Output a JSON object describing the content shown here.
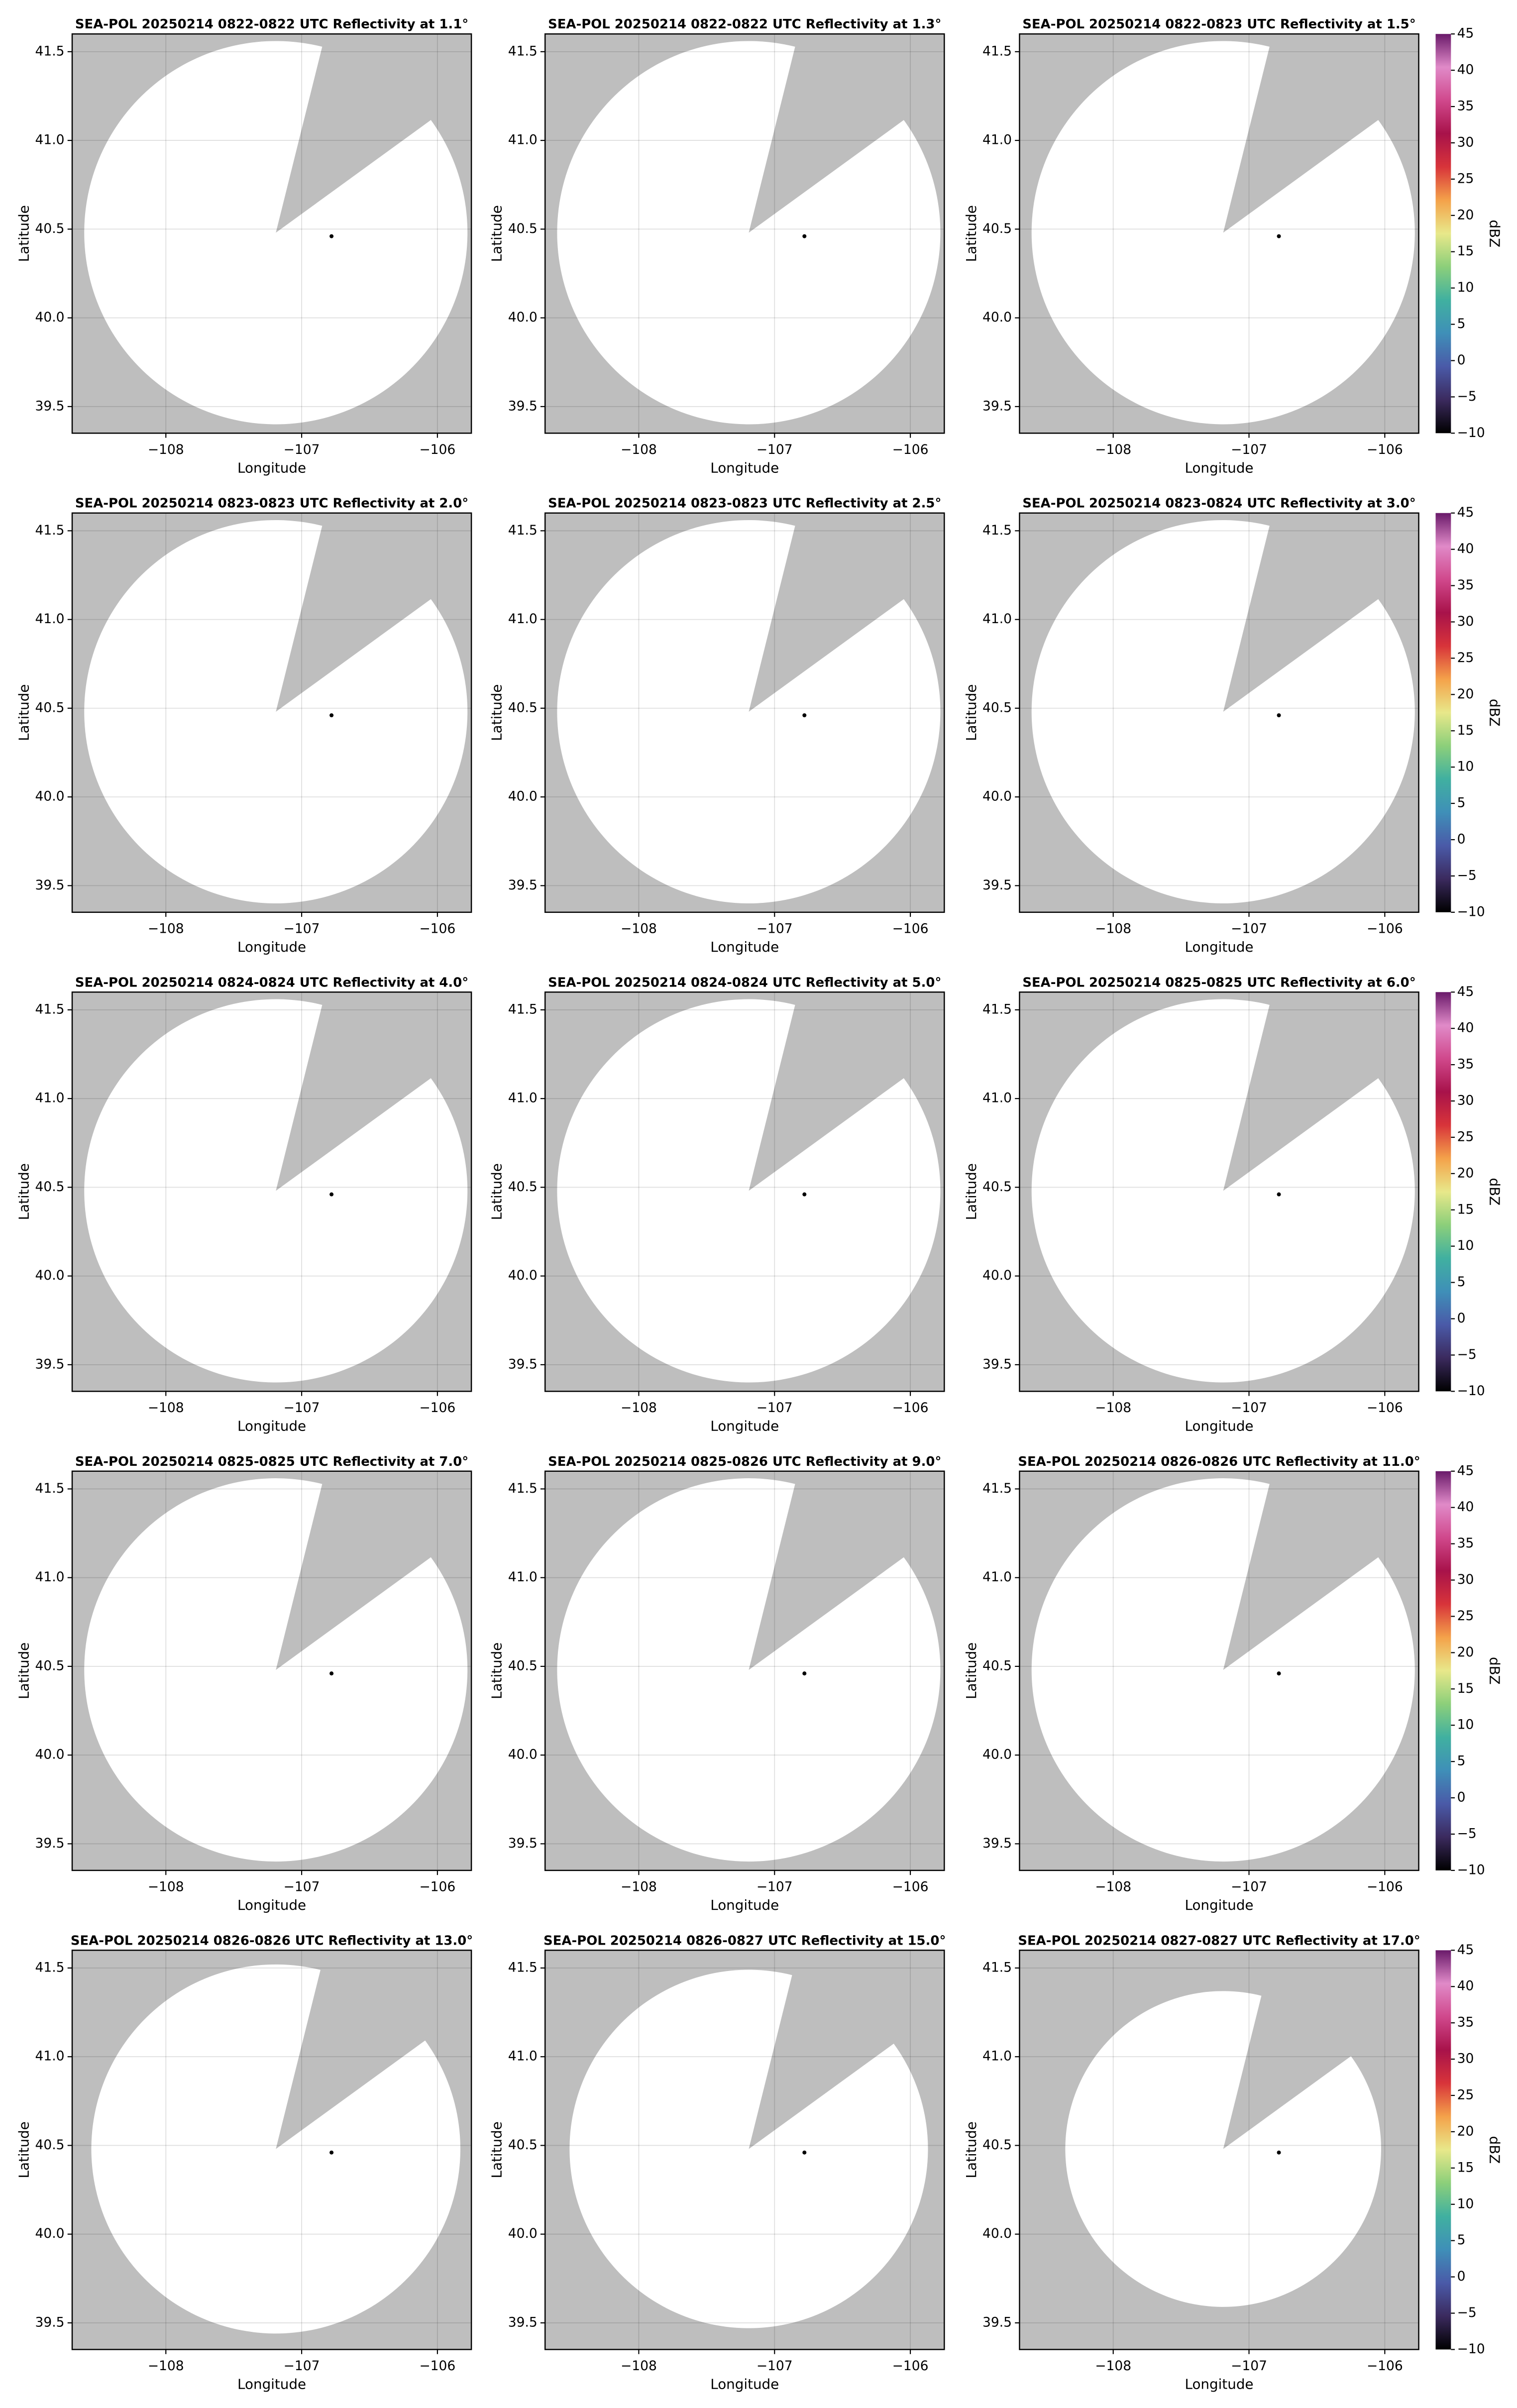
{
  "chart_data": [
    {
      "type": "radar-ppi",
      "title": "SEA-POL 20250214 0822-0822 UTC Reflectivity at 1.1°",
      "xlabel": "Longitude",
      "ylabel": "Latitude",
      "xlim": [
        -108.69,
        -105.75
      ],
      "ylim": [
        39.35,
        41.6
      ],
      "xticks": [
        {
          "value": -108,
          "label": "−108"
        },
        {
          "value": -107,
          "label": "−107"
        },
        {
          "value": -106,
          "label": "−106"
        }
      ],
      "yticks": [
        39.5,
        {
          "value": 40.0,
          "label": "40.0"
        },
        40.5,
        {
          "value": 41.0,
          "label": "41.0"
        },
        41.5
      ],
      "grid": true,
      "radar_lon": -107.19,
      "radar_lat": 40.48,
      "coverage_radius_lat": 1.08,
      "blind_sector": [
        14,
        54
      ],
      "marker": {
        "x": -106.78,
        "y": 40.46
      }
    },
    {
      "type": "radar-ppi",
      "title": "SEA-POL 20250214 0822-0822 UTC Reflectivity at 1.3°",
      "xlabel": "Longitude",
      "ylabel": "Latitude",
      "xlim": [
        -108.69,
        -105.75
      ],
      "ylim": [
        39.35,
        41.6
      ],
      "xticks": [
        {
          "value": -108,
          "label": "−108"
        },
        {
          "value": -107,
          "label": "−107"
        },
        {
          "value": -106,
          "label": "−106"
        }
      ],
      "yticks": [
        39.5,
        {
          "value": 40.0,
          "label": "40.0"
        },
        40.5,
        {
          "value": 41.0,
          "label": "41.0"
        },
        41.5
      ],
      "grid": true,
      "radar_lon": -107.19,
      "radar_lat": 40.48,
      "coverage_radius_lat": 1.08,
      "blind_sector": [
        14,
        54
      ],
      "marker": {
        "x": -106.78,
        "y": 40.46
      }
    },
    {
      "type": "radar-ppi",
      "title": "SEA-POL 20250214 0822-0823 UTC Reflectivity at 1.5°",
      "xlabel": "Longitude",
      "ylabel": "Latitude",
      "xlim": [
        -108.69,
        -105.75
      ],
      "ylim": [
        39.35,
        41.6
      ],
      "xticks": [
        {
          "value": -108,
          "label": "−108"
        },
        {
          "value": -107,
          "label": "−107"
        },
        {
          "value": -106,
          "label": "−106"
        }
      ],
      "yticks": [
        39.5,
        {
          "value": 40.0,
          "label": "40.0"
        },
        40.5,
        {
          "value": 41.0,
          "label": "41.0"
        },
        41.5
      ],
      "grid": true,
      "radar_lon": -107.19,
      "radar_lat": 40.48,
      "coverage_radius_lat": 1.08,
      "blind_sector": [
        14,
        54
      ],
      "marker": {
        "x": -106.78,
        "y": 40.46
      },
      "colorbar_label": "dBZ",
      "clim": [
        -10,
        45
      ],
      "cticks": [
        {
          "value": -10,
          "label": "−10"
        },
        {
          "value": -5,
          "label": "−5"
        },
        0,
        5,
        10,
        15,
        20,
        25,
        30,
        35,
        40,
        45
      ],
      "colormap": [
        "#000000",
        "#3b2a5e",
        "#4a5aa8",
        "#3f8fb8",
        "#40b0a0",
        "#8ccf7a",
        "#e8e88a",
        "#f4a24a",
        "#d8343a",
        "#a8124a",
        "#d0488c",
        "#e08ac8",
        "#6a1a6a"
      ]
    },
    {
      "type": "radar-ppi",
      "title": "SEA-POL 20250214 0823-0823 UTC Reflectivity at 2.0°",
      "xlabel": "Longitude",
      "ylabel": "Latitude",
      "xlim": [
        -108.69,
        -105.75
      ],
      "ylim": [
        39.35,
        41.6
      ],
      "xticks": [
        {
          "value": -108,
          "label": "−108"
        },
        {
          "value": -107,
          "label": "−107"
        },
        {
          "value": -106,
          "label": "−106"
        }
      ],
      "yticks": [
        39.5,
        {
          "value": 40.0,
          "label": "40.0"
        },
        40.5,
        {
          "value": 41.0,
          "label": "41.0"
        },
        41.5
      ],
      "grid": true,
      "radar_lon": -107.19,
      "radar_lat": 40.48,
      "coverage_radius_lat": 1.08,
      "blind_sector": [
        14,
        54
      ],
      "marker": {
        "x": -106.78,
        "y": 40.46
      }
    },
    {
      "type": "radar-ppi",
      "title": "SEA-POL 20250214 0823-0823 UTC Reflectivity at 2.5°",
      "xlabel": "Longitude",
      "ylabel": "Latitude",
      "xlim": [
        -108.69,
        -105.75
      ],
      "ylim": [
        39.35,
        41.6
      ],
      "xticks": [
        {
          "value": -108,
          "label": "−108"
        },
        {
          "value": -107,
          "label": "−107"
        },
        {
          "value": -106,
          "label": "−106"
        }
      ],
      "yticks": [
        39.5,
        {
          "value": 40.0,
          "label": "40.0"
        },
        40.5,
        {
          "value": 41.0,
          "label": "41.0"
        },
        41.5
      ],
      "grid": true,
      "radar_lon": -107.19,
      "radar_lat": 40.48,
      "coverage_radius_lat": 1.08,
      "blind_sector": [
        14,
        54
      ],
      "marker": {
        "x": -106.78,
        "y": 40.46
      }
    },
    {
      "type": "radar-ppi",
      "title": "SEA-POL 20250214 0823-0824 UTC Reflectivity at 3.0°",
      "xlabel": "Longitude",
      "ylabel": "Latitude",
      "xlim": [
        -108.69,
        -105.75
      ],
      "ylim": [
        39.35,
        41.6
      ],
      "xticks": [
        {
          "value": -108,
          "label": "−108"
        },
        {
          "value": -107,
          "label": "−107"
        },
        {
          "value": -106,
          "label": "−106"
        }
      ],
      "yticks": [
        39.5,
        {
          "value": 40.0,
          "label": "40.0"
        },
        40.5,
        {
          "value": 41.0,
          "label": "41.0"
        },
        41.5
      ],
      "grid": true,
      "radar_lon": -107.19,
      "radar_lat": 40.48,
      "coverage_radius_lat": 1.08,
      "blind_sector": [
        14,
        54
      ],
      "marker": {
        "x": -106.78,
        "y": 40.46
      },
      "colorbar_label": "dBZ",
      "clim": [
        -10,
        45
      ],
      "cticks": [
        {
          "value": -10,
          "label": "−10"
        },
        {
          "value": -5,
          "label": "−5"
        },
        0,
        5,
        10,
        15,
        20,
        25,
        30,
        35,
        40,
        45
      ],
      "colormap": [
        "#000000",
        "#3b2a5e",
        "#4a5aa8",
        "#3f8fb8",
        "#40b0a0",
        "#8ccf7a",
        "#e8e88a",
        "#f4a24a",
        "#d8343a",
        "#a8124a",
        "#d0488c",
        "#e08ac8",
        "#6a1a6a"
      ]
    },
    {
      "type": "radar-ppi",
      "title": "SEA-POL 20250214 0824-0824 UTC Reflectivity at 4.0°",
      "xlabel": "Longitude",
      "ylabel": "Latitude",
      "xlim": [
        -108.69,
        -105.75
      ],
      "ylim": [
        39.35,
        41.6
      ],
      "xticks": [
        {
          "value": -108,
          "label": "−108"
        },
        {
          "value": -107,
          "label": "−107"
        },
        {
          "value": -106,
          "label": "−106"
        }
      ],
      "yticks": [
        39.5,
        {
          "value": 40.0,
          "label": "40.0"
        },
        40.5,
        {
          "value": 41.0,
          "label": "41.0"
        },
        41.5
      ],
      "grid": true,
      "radar_lon": -107.19,
      "radar_lat": 40.48,
      "coverage_radius_lat": 1.08,
      "blind_sector": [
        14,
        54
      ],
      "marker": {
        "x": -106.78,
        "y": 40.46
      }
    },
    {
      "type": "radar-ppi",
      "title": "SEA-POL 20250214 0824-0824 UTC Reflectivity at 5.0°",
      "xlabel": "Longitude",
      "ylabel": "Latitude",
      "xlim": [
        -108.69,
        -105.75
      ],
      "ylim": [
        39.35,
        41.6
      ],
      "xticks": [
        {
          "value": -108,
          "label": "−108"
        },
        {
          "value": -107,
          "label": "−107"
        },
        {
          "value": -106,
          "label": "−106"
        }
      ],
      "yticks": [
        39.5,
        {
          "value": 40.0,
          "label": "40.0"
        },
        40.5,
        {
          "value": 41.0,
          "label": "41.0"
        },
        41.5
      ],
      "grid": true,
      "radar_lon": -107.19,
      "radar_lat": 40.48,
      "coverage_radius_lat": 1.08,
      "blind_sector": [
        14,
        54
      ],
      "marker": {
        "x": -106.78,
        "y": 40.46
      }
    },
    {
      "type": "radar-ppi",
      "title": "SEA-POL 20250214 0825-0825 UTC Reflectivity at 6.0°",
      "xlabel": "Longitude",
      "ylabel": "Latitude",
      "xlim": [
        -108.69,
        -105.75
      ],
      "ylim": [
        39.35,
        41.6
      ],
      "xticks": [
        {
          "value": -108,
          "label": "−108"
        },
        {
          "value": -107,
          "label": "−107"
        },
        {
          "value": -106,
          "label": "−106"
        }
      ],
      "yticks": [
        39.5,
        {
          "value": 40.0,
          "label": "40.0"
        },
        40.5,
        {
          "value": 41.0,
          "label": "41.0"
        },
        41.5
      ],
      "grid": true,
      "radar_lon": -107.19,
      "radar_lat": 40.48,
      "coverage_radius_lat": 1.08,
      "blind_sector": [
        14,
        54
      ],
      "marker": {
        "x": -106.78,
        "y": 40.46
      },
      "colorbar_label": "dBZ",
      "clim": [
        -10,
        45
      ],
      "cticks": [
        {
          "value": -10,
          "label": "−10"
        },
        {
          "value": -5,
          "label": "−5"
        },
        0,
        5,
        10,
        15,
        20,
        25,
        30,
        35,
        40,
        45
      ],
      "colormap": [
        "#000000",
        "#3b2a5e",
        "#4a5aa8",
        "#3f8fb8",
        "#40b0a0",
        "#8ccf7a",
        "#e8e88a",
        "#f4a24a",
        "#d8343a",
        "#a8124a",
        "#d0488c",
        "#e08ac8",
        "#6a1a6a"
      ]
    },
    {
      "type": "radar-ppi",
      "title": "SEA-POL 20250214 0825-0825 UTC Reflectivity at 7.0°",
      "xlabel": "Longitude",
      "ylabel": "Latitude",
      "xlim": [
        -108.69,
        -105.75
      ],
      "ylim": [
        39.35,
        41.6
      ],
      "xticks": [
        {
          "value": -108,
          "label": "−108"
        },
        {
          "value": -107,
          "label": "−107"
        },
        {
          "value": -106,
          "label": "−106"
        }
      ],
      "yticks": [
        39.5,
        {
          "value": 40.0,
          "label": "40.0"
        },
        40.5,
        {
          "value": 41.0,
          "label": "41.0"
        },
        41.5
      ],
      "grid": true,
      "radar_lon": -107.19,
      "radar_lat": 40.48,
      "coverage_radius_lat": 1.08,
      "blind_sector": [
        14,
        54
      ],
      "marker": {
        "x": -106.78,
        "y": 40.46
      }
    },
    {
      "type": "radar-ppi",
      "title": "SEA-POL 20250214 0825-0826 UTC Reflectivity at 9.0°",
      "xlabel": "Longitude",
      "ylabel": "Latitude",
      "xlim": [
        -108.69,
        -105.75
      ],
      "ylim": [
        39.35,
        41.6
      ],
      "xticks": [
        {
          "value": -108,
          "label": "−108"
        },
        {
          "value": -107,
          "label": "−107"
        },
        {
          "value": -106,
          "label": "−106"
        }
      ],
      "yticks": [
        39.5,
        {
          "value": 40.0,
          "label": "40.0"
        },
        40.5,
        {
          "value": 41.0,
          "label": "41.0"
        },
        41.5
      ],
      "grid": true,
      "radar_lon": -107.19,
      "radar_lat": 40.48,
      "coverage_radius_lat": 1.08,
      "blind_sector": [
        14,
        54
      ],
      "marker": {
        "x": -106.78,
        "y": 40.46
      }
    },
    {
      "type": "radar-ppi",
      "title": "SEA-POL 20250214 0826-0826 UTC Reflectivity at 11.0°",
      "xlabel": "Longitude",
      "ylabel": "Latitude",
      "xlim": [
        -108.69,
        -105.75
      ],
      "ylim": [
        39.35,
        41.6
      ],
      "xticks": [
        {
          "value": -108,
          "label": "−108"
        },
        {
          "value": -107,
          "label": "−107"
        },
        {
          "value": -106,
          "label": "−106"
        }
      ],
      "yticks": [
        39.5,
        {
          "value": 40.0,
          "label": "40.0"
        },
        40.5,
        {
          "value": 41.0,
          "label": "41.0"
        },
        41.5
      ],
      "grid": true,
      "radar_lon": -107.19,
      "radar_lat": 40.48,
      "coverage_radius_lat": 1.08,
      "blind_sector": [
        14,
        54
      ],
      "marker": {
        "x": -106.78,
        "y": 40.46
      },
      "colorbar_label": "dBZ",
      "clim": [
        -10,
        45
      ],
      "cticks": [
        {
          "value": -10,
          "label": "−10"
        },
        {
          "value": -5,
          "label": "−5"
        },
        0,
        5,
        10,
        15,
        20,
        25,
        30,
        35,
        40,
        45
      ],
      "colormap": [
        "#000000",
        "#3b2a5e",
        "#4a5aa8",
        "#3f8fb8",
        "#40b0a0",
        "#8ccf7a",
        "#e8e88a",
        "#f4a24a",
        "#d8343a",
        "#a8124a",
        "#d0488c",
        "#e08ac8",
        "#6a1a6a"
      ]
    },
    {
      "type": "radar-ppi",
      "title": "SEA-POL 20250214 0826-0826 UTC Reflectivity at 13.0°",
      "xlabel": "Longitude",
      "ylabel": "Latitude",
      "xlim": [
        -108.69,
        -105.75
      ],
      "ylim": [
        39.35,
        41.6
      ],
      "xticks": [
        {
          "value": -108,
          "label": "−108"
        },
        {
          "value": -107,
          "label": "−107"
        },
        {
          "value": -106,
          "label": "−106"
        }
      ],
      "yticks": [
        39.5,
        {
          "value": 40.0,
          "label": "40.0"
        },
        40.5,
        {
          "value": 41.0,
          "label": "41.0"
        },
        41.5
      ],
      "grid": true,
      "radar_lon": -107.19,
      "radar_lat": 40.48,
      "coverage_radius_lat": 1.04,
      "blind_sector": [
        14,
        54
      ],
      "marker": {
        "x": -106.78,
        "y": 40.46
      }
    },
    {
      "type": "radar-ppi",
      "title": "SEA-POL 20250214 0826-0827 UTC Reflectivity at 15.0°",
      "xlabel": "Longitude",
      "ylabel": "Latitude",
      "xlim": [
        -108.69,
        -105.75
      ],
      "ylim": [
        39.35,
        41.6
      ],
      "xticks": [
        {
          "value": -108,
          "label": "−108"
        },
        {
          "value": -107,
          "label": "−107"
        },
        {
          "value": -106,
          "label": "−106"
        }
      ],
      "yticks": [
        39.5,
        {
          "value": 40.0,
          "label": "40.0"
        },
        40.5,
        {
          "value": 41.0,
          "label": "41.0"
        },
        41.5
      ],
      "grid": true,
      "radar_lon": -107.19,
      "radar_lat": 40.48,
      "coverage_radius_lat": 1.01,
      "blind_sector": [
        14,
        54
      ],
      "marker": {
        "x": -106.78,
        "y": 40.46
      }
    },
    {
      "type": "radar-ppi",
      "title": "SEA-POL 20250214 0827-0827 UTC Reflectivity at 17.0°",
      "xlabel": "Longitude",
      "ylabel": "Latitude",
      "xlim": [
        -108.69,
        -105.75
      ],
      "ylim": [
        39.35,
        41.6
      ],
      "xticks": [
        {
          "value": -108,
          "label": "−108"
        },
        {
          "value": -107,
          "label": "−107"
        },
        {
          "value": -106,
          "label": "−106"
        }
      ],
      "yticks": [
        39.5,
        {
          "value": 40.0,
          "label": "40.0"
        },
        40.5,
        {
          "value": 41.0,
          "label": "41.0"
        },
        41.5
      ],
      "grid": true,
      "radar_lon": -107.19,
      "radar_lat": 40.48,
      "coverage_radius_lat": 0.89,
      "blind_sector": [
        14,
        54
      ],
      "marker": {
        "x": -106.78,
        "y": 40.46
      },
      "colorbar_label": "dBZ",
      "clim": [
        -10,
        45
      ],
      "cticks": [
        {
          "value": -10,
          "label": "−10"
        },
        {
          "value": -5,
          "label": "−5"
        },
        0,
        5,
        10,
        15,
        20,
        25,
        30,
        35,
        40,
        45
      ],
      "colormap": [
        "#000000",
        "#3b2a5e",
        "#4a5aa8",
        "#3f8fb8",
        "#40b0a0",
        "#8ccf7a",
        "#e8e88a",
        "#f4a24a",
        "#d8343a",
        "#a8124a",
        "#d0488c",
        "#e08ac8",
        "#6a1a6a"
      ]
    }
  ]
}
